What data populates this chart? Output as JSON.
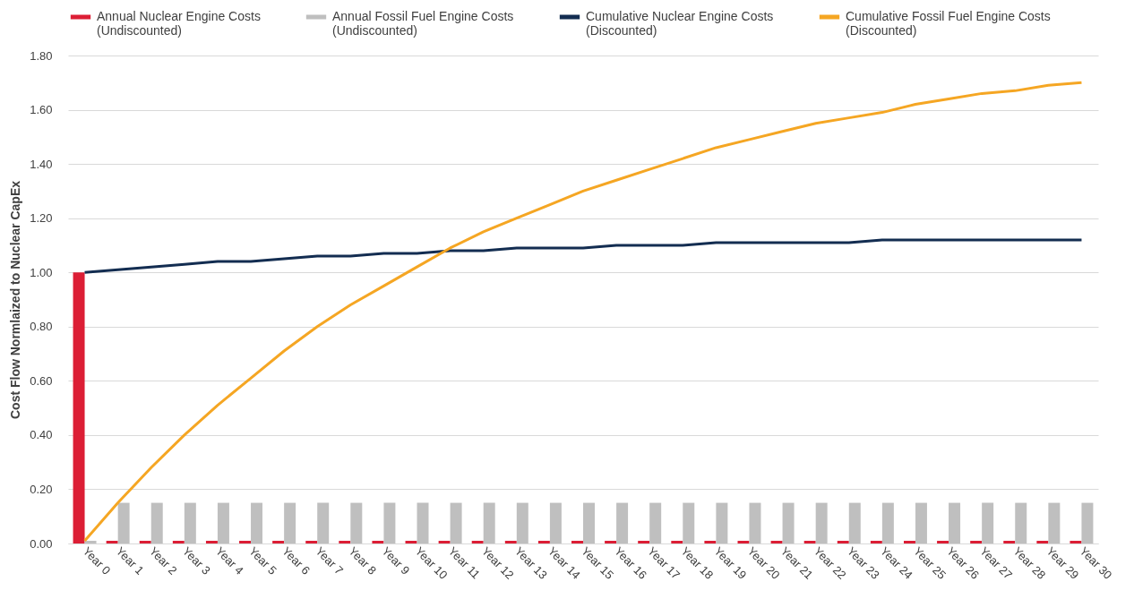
{
  "chart_data": {
    "type": "bar",
    "ylabel": "Cost Flow Normlaized to Nuclear CapEx",
    "categories": [
      "Year 0",
      "Year 1",
      "Year 2",
      "Year 3",
      "Year 4",
      "Year 5",
      "Year 6",
      "Year 7",
      "Year 8",
      "Year 9",
      "Year 10",
      "Year 11",
      "Year 12",
      "Year 13",
      "Year 14",
      "Year 15",
      "Year 16",
      "Year 17",
      "Year 18",
      "Year 19",
      "Year 20",
      "Year 21",
      "Year 22",
      "Year 23",
      "Year 24",
      "Year 25",
      "Year 26",
      "Year 27",
      "Year 28",
      "Year 29",
      "Year 30"
    ],
    "series": [
      {
        "name": "Annual Nuclear Engine Costs (Undiscounted)",
        "color": "#dc1e35",
        "values": [
          1.0,
          0.01,
          0.01,
          0.01,
          0.01,
          0.01,
          0.01,
          0.01,
          0.01,
          0.01,
          0.01,
          0.01,
          0.01,
          0.01,
          0.01,
          0.01,
          0.01,
          0.01,
          0.01,
          0.01,
          0.01,
          0.01,
          0.01,
          0.01,
          0.01,
          0.01,
          0.01,
          0.01,
          0.01,
          0.01,
          0.01
        ]
      },
      {
        "name": "Annual Fossil Fuel Engine Costs (Undiscounted)",
        "color": "#bfbfbf",
        "values": [
          0.01,
          0.15,
          0.15,
          0.15,
          0.15,
          0.15,
          0.15,
          0.15,
          0.15,
          0.15,
          0.15,
          0.15,
          0.15,
          0.15,
          0.15,
          0.15,
          0.15,
          0.15,
          0.15,
          0.15,
          0.15,
          0.15,
          0.15,
          0.15,
          0.15,
          0.15,
          0.15,
          0.15,
          0.15,
          0.15,
          0.15
        ]
      },
      {
        "name": "Cumulative Nuclear Engine Costs (Discounted)",
        "type": "line",
        "color": "#132d51",
        "values": [
          1.0,
          1.01,
          1.02,
          1.03,
          1.04,
          1.04,
          1.05,
          1.06,
          1.06,
          1.07,
          1.07,
          1.08,
          1.08,
          1.09,
          1.09,
          1.09,
          1.1,
          1.1,
          1.1,
          1.11,
          1.11,
          1.11,
          1.11,
          1.11,
          1.12,
          1.12,
          1.12,
          1.12,
          1.12,
          1.12,
          1.12
        ]
      },
      {
        "name": "Cumulative Fossil Fuel Engine Costs (Discounted)",
        "type": "line",
        "color": "#f5a623",
        "values": [
          0.01,
          0.15,
          0.28,
          0.4,
          0.51,
          0.61,
          0.71,
          0.8,
          0.88,
          0.95,
          1.02,
          1.09,
          1.15,
          1.2,
          1.25,
          1.3,
          1.34,
          1.38,
          1.42,
          1.46,
          1.49,
          1.52,
          1.55,
          1.57,
          1.59,
          1.62,
          1.64,
          1.66,
          1.67,
          1.69,
          1.7
        ]
      }
    ],
    "ylim": [
      0,
      1.8
    ],
    "yticks": [
      {
        "value": 0,
        "label": "0.00"
      },
      {
        "value": 0.2,
        "label": "0.20"
      },
      {
        "value": 0.4,
        "label": "0.40"
      },
      {
        "value": 0.6,
        "label": "0.60"
      },
      {
        "value": 0.8,
        "label": "0.80"
      },
      {
        "value": 1.0,
        "label": "1.00"
      },
      {
        "value": 1.2,
        "label": "1.20"
      },
      {
        "value": 1.4,
        "label": "1.40"
      },
      {
        "value": 1.6,
        "label": "1.60"
      },
      {
        "value": 1.8,
        "label": "1.80"
      }
    ],
    "grid": "y",
    "legend": "top",
    "marker": "none",
    "line_style": "solid"
  }
}
